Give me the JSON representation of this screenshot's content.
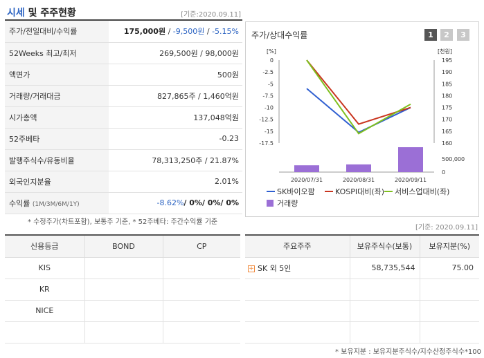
{
  "left": {
    "title_highlight": "시세",
    "title_rest": " 및 주주현황",
    "stamp": "[기준:2020.09.11]",
    "rows": [
      {
        "label": "주가/전일대비/수익률"
      },
      {
        "label": "52Weeks 최고/최저",
        "value": "269,500원 / 98,000원"
      },
      {
        "label": "액면가",
        "value": "500원"
      },
      {
        "label": "거래량/거래대금",
        "value": "827,865주 / 1,460억원"
      },
      {
        "label": "시가총액",
        "value": "137,048억원"
      },
      {
        "label": "52주베타",
        "value": "-0.23"
      },
      {
        "label": "발행주식수/유동비율",
        "value": "78,313,250주 / 21.87%"
      },
      {
        "label": "외국인지분율",
        "value": "2.01%"
      },
      {
        "label": "수익률",
        "label_small": "(1M/3M/6M/1Y)"
      }
    ],
    "price": {
      "price": "175,000원",
      "sep": " / ",
      "change": "-9,500원",
      "sep2": " / ",
      "rate": "-5.15%"
    },
    "returns": {
      "m1": "-8.62%",
      "rest": "/ 0%/ 0%/ 0%"
    },
    "note": "* 수정주가(차트포함), 보통주 기준, * 52주베타: 주간수익률 기준"
  },
  "chart": {
    "title": "주가/상대수익률",
    "buttons": [
      "1",
      "2",
      "3"
    ]
  },
  "chart_data": {
    "type": "line",
    "x": [
      "2020/07/31",
      "2020/08/31",
      "2020/09/11"
    ],
    "left_axis_label": "[%]",
    "right_axis_label": "[천원]",
    "left_ticks": [
      "0",
      "-2.5",
      "-5",
      "-7.5",
      "-10",
      "-12.5",
      "-15",
      "-17.5"
    ],
    "right_ticks": [
      "195",
      "190",
      "185",
      "180",
      "175",
      "170",
      "165",
      "160"
    ],
    "volume_ticks": [
      "500,000",
      "0"
    ],
    "series": [
      {
        "name": "SK바이오팜",
        "axis": "right",
        "color": "#2f5fd1",
        "values": [
          183,
          164.5,
          175
        ]
      },
      {
        "name": "KOSPI대비(좌)",
        "axis": "left",
        "color": "#c9351f",
        "values": [
          0,
          -13.5,
          -10
        ]
      },
      {
        "name": "서비스업대비(좌)",
        "axis": "left",
        "color": "#7fbf1e",
        "values": [
          0,
          -15.5,
          -9.3
        ]
      }
    ],
    "volume": {
      "name": "거래량",
      "color": "#9b6fd6",
      "values": [
        150000,
        170000,
        550000
      ]
    }
  },
  "right_stamp": "[기준: 2020.09.11]",
  "credit": {
    "headers": [
      "신용등급",
      "BOND",
      "CP"
    ],
    "rows": [
      [
        "KIS",
        "",
        ""
      ],
      [
        "KR",
        "",
        ""
      ],
      [
        "NICE",
        "",
        ""
      ],
      [
        "",
        "",
        ""
      ]
    ]
  },
  "holders": {
    "headers": [
      "주요주주",
      "보유주식수(보통)",
      "보유지분(%)"
    ],
    "rows": [
      {
        "name": "SK 외 5인",
        "shares": "58,735,544",
        "pct": "75.00",
        "expand": true
      },
      {
        "name": "",
        "shares": "",
        "pct": ""
      },
      {
        "name": "",
        "shares": "",
        "pct": ""
      },
      {
        "name": "",
        "shares": "",
        "pct": ""
      }
    ],
    "note": "* 보유지분 : 보유지분주식수/지수산정주식수*100"
  }
}
